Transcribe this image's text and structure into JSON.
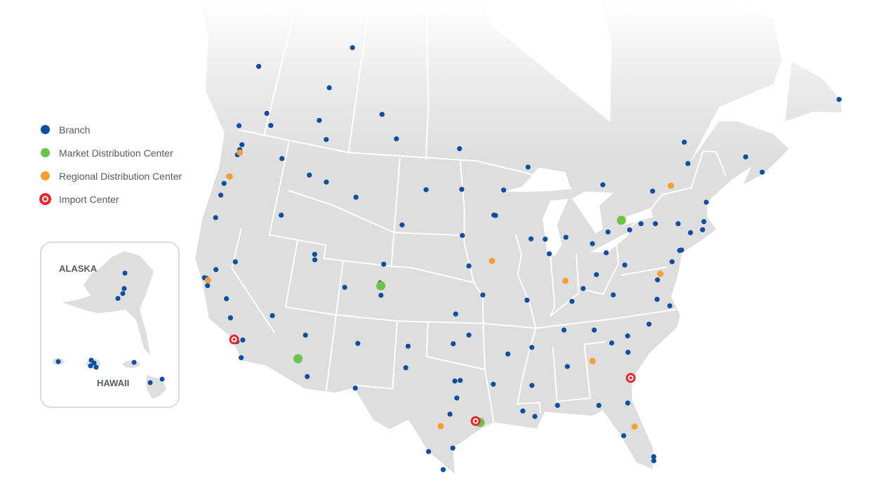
{
  "legend": {
    "items": [
      {
        "label": "Branch",
        "color": "#0b4ea2",
        "icon": "circle"
      },
      {
        "label": "Market Distribution Center",
        "color": "#6cc24a",
        "icon": "circle"
      },
      {
        "label": "Regional Distribution Center",
        "color": "#f7a030",
        "icon": "circle"
      },
      {
        "label": "Import Center",
        "color": "#e8262a",
        "icon": "target-ring"
      }
    ]
  },
  "inset": {
    "alaska_label": "ALASKA",
    "hawaii_label": "HAWAII"
  },
  "colors": {
    "land": "#dedede",
    "border": "#ffffff",
    "water": "#ffffff"
  },
  "markers": {
    "branch": [
      [
        47.6,
        -122.3
      ],
      [
        47.2,
        -122.4
      ],
      [
        48.0,
        -122.2
      ],
      [
        49.3,
        -123.1
      ],
      [
        47.7,
        -117.4
      ],
      [
        45.5,
        -122.7
      ],
      [
        44.9,
        -123.0
      ],
      [
        44.0,
        -123.0
      ],
      [
        42.3,
        -122.9
      ],
      [
        43.6,
        -116.2
      ],
      [
        39.5,
        -119.8
      ],
      [
        38.6,
        -121.5
      ],
      [
        37.8,
        -122.4
      ],
      [
        37.3,
        -121.9
      ],
      [
        37.8,
        -122.2
      ],
      [
        36.7,
        -119.8
      ],
      [
        35.4,
        -119.0
      ],
      [
        34.05,
        -118.25
      ],
      [
        33.8,
        -117.9
      ],
      [
        32.7,
        -117.2
      ],
      [
        34.0,
        -117.4
      ],
      [
        36.2,
        -115.1
      ],
      [
        33.45,
        -112.1
      ],
      [
        32.2,
        -110.9
      ],
      [
        40.8,
        -111.9
      ],
      [
        41.2,
        -112.0
      ],
      [
        35.1,
        -106.6
      ],
      [
        31.8,
        -106.4
      ],
      [
        39.7,
        -105.0
      ],
      [
        38.8,
        -104.8
      ],
      [
        45.8,
        -108.5
      ],
      [
        51.0,
        -114.0
      ],
      [
        53.5,
        -113.5
      ],
      [
        52.1,
        -106.6
      ],
      [
        50.4,
        -104.6
      ],
      [
        49.9,
        -97.1
      ],
      [
        46.9,
        -96.8
      ],
      [
        44.98,
        -93.27
      ],
      [
        44.95,
        -93.1
      ],
      [
        43.5,
        -96.7
      ],
      [
        41.25,
        -96.0
      ],
      [
        41.6,
        -93.6
      ],
      [
        39.1,
        -94.6
      ],
      [
        37.7,
        -97.3
      ],
      [
        35.5,
        -97.5
      ],
      [
        36.15,
        -96.0
      ],
      [
        32.8,
        -96.8
      ],
      [
        32.75,
        -97.3
      ],
      [
        30.3,
        -97.7
      ],
      [
        29.4,
        -98.5
      ],
      [
        29.8,
        -95.4
      ],
      [
        27.8,
        -97.4
      ],
      [
        27.5,
        -99.5
      ],
      [
        26.2,
        -98.2
      ],
      [
        33.6,
        -101.9
      ],
      [
        35.2,
        -101.8
      ],
      [
        34.7,
        -92.3
      ],
      [
        35.1,
        -90.0
      ],
      [
        30.0,
        -90.1
      ],
      [
        30.45,
        -91.15
      ],
      [
        32.3,
        -90.2
      ],
      [
        33.5,
        -86.8
      ],
      [
        36.2,
        -86.8
      ],
      [
        38.25,
        -85.75
      ],
      [
        38.6,
        -90.2
      ],
      [
        41.9,
        -87.6
      ],
      [
        43.0,
        -87.9
      ],
      [
        43.1,
        -89.4
      ],
      [
        39.8,
        -86.2
      ],
      [
        42.3,
        -83.0
      ],
      [
        43.0,
        -85.7
      ],
      [
        40.0,
        -83.0
      ],
      [
        41.5,
        -81.7
      ],
      [
        39.1,
        -84.5
      ],
      [
        40.4,
        -80.0
      ],
      [
        33.75,
        -84.4
      ],
      [
        35.2,
        -80.8
      ],
      [
        35.8,
        -78.6
      ],
      [
        37.5,
        -77.4
      ],
      [
        36.85,
        -76.3
      ],
      [
        38.9,
        -77.0
      ],
      [
        39.3,
        -76.6
      ],
      [
        40.0,
        -75.2
      ],
      [
        40.7,
        -74.0
      ],
      [
        40.7,
        -74.2
      ],
      [
        41.8,
        -72.7
      ],
      [
        42.36,
        -71.06
      ],
      [
        41.8,
        -71.4
      ],
      [
        42.65,
        -73.75
      ],
      [
        42.9,
        -78.9
      ],
      [
        43.2,
        -77.6
      ],
      [
        43.0,
        -76.1
      ],
      [
        45.5,
        -73.6
      ],
      [
        46.8,
        -71.2
      ],
      [
        45.4,
        -75.7
      ],
      [
        43.7,
        -79.4
      ],
      [
        43.0,
        -81.2
      ],
      [
        44.65,
        -63.6
      ],
      [
        46.1,
        -64.8
      ],
      [
        43.7,
        -70.3
      ],
      [
        30.3,
        -81.7
      ],
      [
        28.5,
        -81.4
      ],
      [
        27.95,
        -82.45
      ],
      [
        25.8,
        -80.2
      ],
      [
        26.1,
        -80.15
      ],
      [
        30.4,
        -84.3
      ],
      [
        30.7,
        -88.0
      ],
      [
        34.0,
        -81.0
      ],
      [
        34.85,
        -82.4
      ],
      [
        35.96,
        -83.9
      ],
      [
        38.35,
        -81.6
      ],
      [
        46.5,
        -81.0
      ],
      [
        48.4,
        -89.2
      ],
      [
        46.8,
        -92.1
      ],
      [
        56.7,
        -111.4
      ],
      [
        53.9,
        -122.7
      ],
      [
        50.7,
        -120.3
      ],
      [
        49.9,
        -119.5
      ],
      [
        49.7,
        -112.8
      ],
      [
        46.8,
        -100.8
      ],
      [
        44.1,
        -103.2
      ],
      [
        41.1,
        -104.8
      ],
      [
        46.6,
        -112.0
      ],
      [
        46.9,
        -114.0
      ],
      [
        39.1,
        -108.5
      ],
      [
        35.2,
        -111.65
      ],
      [
        47.56,
        -52.7
      ],
      [
        48.4,
        -71.0
      ],
      [
        31.5,
        -97.1
      ],
      [
        32.5,
        -93.75
      ]
    ],
    "market_distribution_center": [
      [
        39.5,
        -104.9
      ],
      [
        33.4,
        -112.0
      ],
      [
        29.7,
        -95.0
      ],
      [
        43.7,
        -79.6
      ]
    ],
    "regional_distribution_center": [
      [
        47.4,
        -122.2
      ],
      [
        45.5,
        -122.6
      ],
      [
        37.7,
        -122.0
      ],
      [
        41.6,
        -93.6
      ],
      [
        39.8,
        -86.2
      ],
      [
        33.7,
        -84.4
      ],
      [
        28.5,
        -81.4
      ],
      [
        39.3,
        -76.6
      ],
      [
        45.5,
        -73.6
      ],
      [
        29.4,
        -98.5
      ]
    ],
    "import_center": [
      [
        33.9,
        -118.2
      ],
      [
        29.8,
        -95.4
      ],
      [
        32.1,
        -81.1
      ]
    ]
  }
}
